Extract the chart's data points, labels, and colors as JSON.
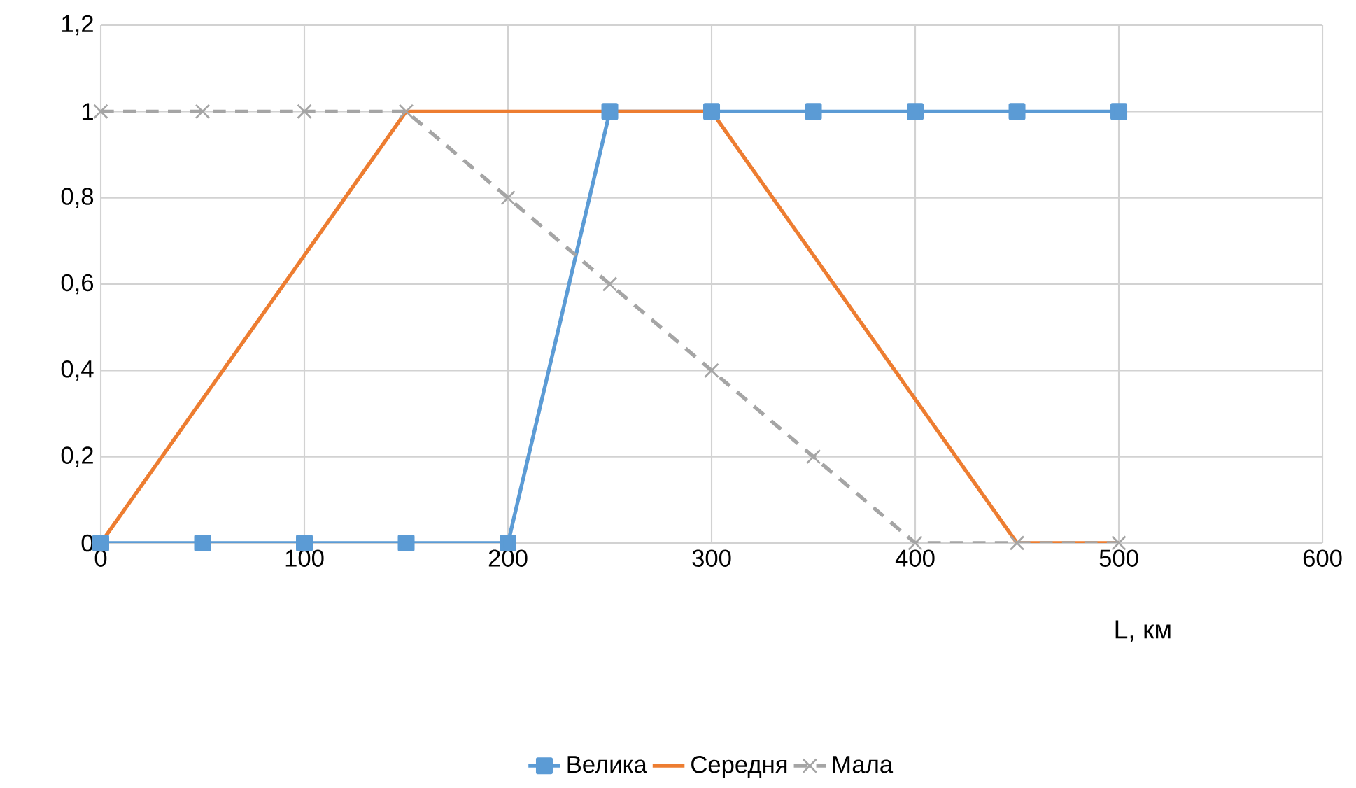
{
  "chart_data": {
    "type": "line",
    "xlabel": "L, км",
    "xlim": [
      0,
      600
    ],
    "xticks": [
      0,
      100,
      200,
      300,
      400,
      500,
      600
    ],
    "ylim": [
      0,
      1.2
    ],
    "yticks": [
      0,
      {
        "value": 0.2,
        "label": "0,2"
      },
      {
        "value": 0.4,
        "label": "0,4"
      },
      {
        "value": 0.6,
        "label": "0,6"
      },
      {
        "value": 0.8,
        "label": "0,8"
      },
      1,
      {
        "value": 1.2,
        "label": "1,2"
      }
    ],
    "grid": true,
    "legend": "bottom",
    "series": [
      {
        "name": "Велика",
        "color": "#5b9bd5",
        "marker": "square",
        "line_style": "solid",
        "x": [
          0,
          50,
          100,
          150,
          200,
          250,
          300,
          350,
          400,
          450,
          500
        ],
        "values": [
          0,
          0,
          0,
          0,
          0,
          1,
          1,
          1,
          1,
          1,
          1
        ]
      },
      {
        "name": "Середня",
        "color": "#ed7d31",
        "marker": "none",
        "line_style": "solid",
        "x": [
          0,
          150,
          300,
          450,
          500
        ],
        "values": [
          0,
          1,
          1,
          0,
          0
        ]
      },
      {
        "name": "Мала",
        "color": "#a5a5a5",
        "marker": "cross",
        "line_style": "dashed",
        "x": [
          0,
          50,
          100,
          150,
          200,
          250,
          300,
          350,
          400,
          450,
          500
        ],
        "values": [
          1,
          1,
          1,
          1,
          0.8,
          0.6,
          0.4,
          0.2,
          0,
          0,
          0
        ]
      }
    ]
  }
}
